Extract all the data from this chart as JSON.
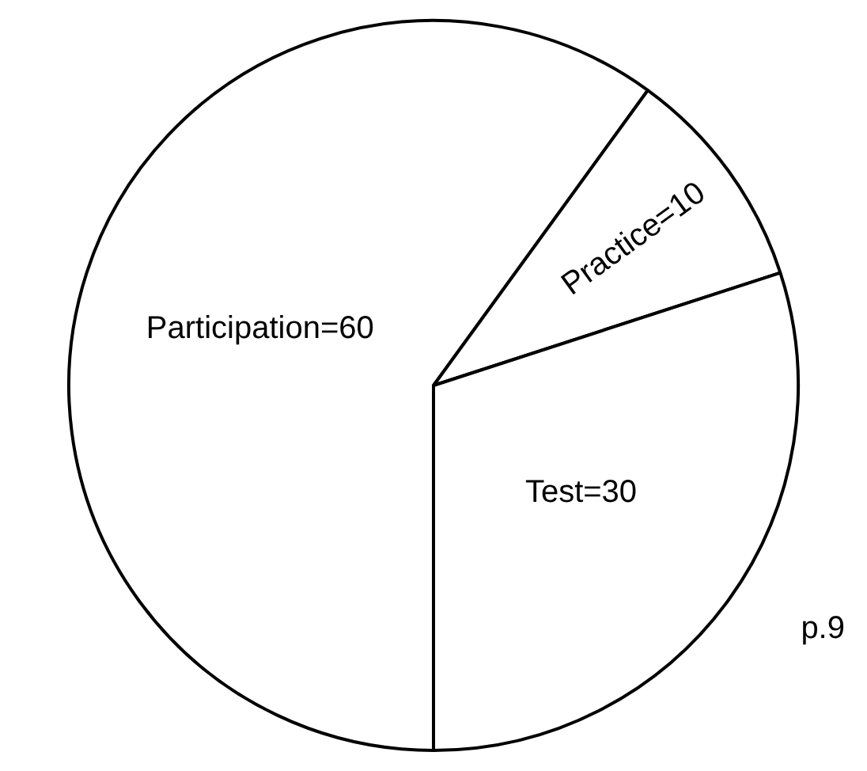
{
  "chart_data": {
    "type": "pie",
    "categories": [
      "Participation=60",
      "Practice=10",
      "Test=30"
    ],
    "values": [
      60,
      10,
      30
    ],
    "colors": [
      "#ffffff",
      "#ffffff",
      "#ffffff"
    ],
    "legend": false,
    "annotations": [
      "p.9"
    ]
  }
}
